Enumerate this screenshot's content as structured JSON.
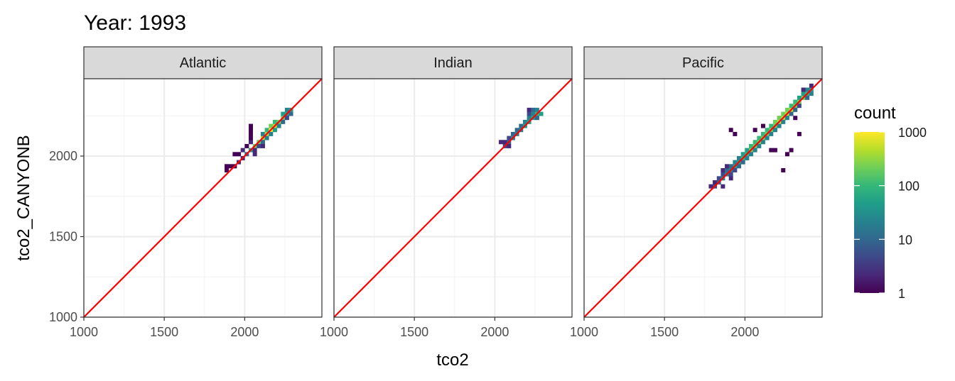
{
  "chart_data": {
    "type": "heatmap",
    "title": "Year: 1993",
    "xlabel": "tco2",
    "ylabel": "tco2_CANYONB",
    "xlim": [
      1000,
      2480
    ],
    "ylim": [
      1000,
      2480
    ],
    "x_ticks": [
      1000,
      1500,
      2000
    ],
    "x_tick_labels": [
      "1000",
      "1500",
      "2000"
    ],
    "y_ticks": [
      1000,
      1500,
      2000
    ],
    "y_tick_labels": [
      "1000",
      "1500",
      "2000"
    ],
    "grid": true,
    "bin_width": 25,
    "reference_line": {
      "slope": 1,
      "intercept": 0,
      "color": "#ff0000"
    },
    "legend": {
      "title": "count",
      "scale": "log10",
      "position": "right",
      "ticks": [
        1,
        10,
        100,
        1000
      ],
      "tick_labels": [
        "1",
        "10",
        "100",
        "1000"
      ],
      "colors": [
        "#440154",
        "#482878",
        "#3e4989",
        "#31688e",
        "#26828e",
        "#1f9e89",
        "#35b779",
        "#6ece58",
        "#b5de2b",
        "#fde725"
      ]
    },
    "panels": [
      {
        "label": "Atlantic",
        "cells": [
          [
            1875,
            1900,
            1
          ],
          [
            1900,
            1925,
            1
          ],
          [
            1925,
            1925,
            1
          ],
          [
            1925,
            2000,
            1
          ],
          [
            1950,
            1950,
            2
          ],
          [
            1950,
            2000,
            1
          ],
          [
            1975,
            1975,
            3
          ],
          [
            1975,
            2025,
            2
          ],
          [
            2000,
            2000,
            8
          ],
          [
            2000,
            2050,
            1
          ],
          [
            2025,
            2025,
            40
          ],
          [
            2025,
            2075,
            2
          ],
          [
            2025,
            2100,
            1
          ],
          [
            2025,
            2125,
            1
          ],
          [
            2025,
            2150,
            1
          ],
          [
            2025,
            2175,
            1
          ],
          [
            2050,
            2050,
            150
          ],
          [
            2050,
            2025,
            3
          ],
          [
            2050,
            2000,
            2
          ],
          [
            2075,
            2075,
            250
          ],
          [
            2075,
            2050,
            6
          ],
          [
            2100,
            2100,
            400
          ],
          [
            2100,
            2075,
            10
          ],
          [
            2100,
            2050,
            2
          ],
          [
            2100,
            2125,
            30
          ],
          [
            2125,
            2125,
            600
          ],
          [
            2125,
            2100,
            20
          ],
          [
            2125,
            2150,
            80
          ],
          [
            2150,
            2150,
            900
          ],
          [
            2150,
            2125,
            30
          ],
          [
            2150,
            2175,
            200
          ],
          [
            2175,
            2175,
            500
          ],
          [
            2175,
            2150,
            40
          ],
          [
            2175,
            2200,
            100
          ],
          [
            2200,
            2200,
            300
          ],
          [
            2200,
            2175,
            20
          ],
          [
            2225,
            2225,
            150
          ],
          [
            2225,
            2200,
            10
          ],
          [
            2225,
            2250,
            50
          ],
          [
            2250,
            2250,
            60
          ],
          [
            2250,
            2225,
            5
          ],
          [
            2250,
            2275,
            20
          ],
          [
            2275,
            2250,
            10
          ],
          [
            2275,
            2275,
            40
          ],
          [
            1875,
            1925,
            1
          ]
        ]
      },
      {
        "label": "Indian",
        "cells": [
          [
            2025,
            2075,
            2
          ],
          [
            2050,
            2050,
            4
          ],
          [
            2050,
            2075,
            3
          ],
          [
            2075,
            2075,
            8
          ],
          [
            2075,
            2100,
            5
          ],
          [
            2075,
            2050,
            2
          ],
          [
            2100,
            2100,
            15
          ],
          [
            2100,
            2125,
            8
          ],
          [
            2125,
            2125,
            20
          ],
          [
            2125,
            2150,
            10
          ],
          [
            2150,
            2150,
            30
          ],
          [
            2150,
            2175,
            12
          ],
          [
            2175,
            2175,
            40
          ],
          [
            2175,
            2200,
            15
          ],
          [
            2200,
            2200,
            50
          ],
          [
            2200,
            2225,
            20
          ],
          [
            2200,
            2250,
            5
          ],
          [
            2200,
            2275,
            3
          ],
          [
            2225,
            2225,
            60
          ],
          [
            2225,
            2250,
            30
          ],
          [
            2225,
            2275,
            8
          ],
          [
            2250,
            2250,
            80
          ],
          [
            2250,
            2225,
            10
          ],
          [
            2250,
            2275,
            30
          ],
          [
            2275,
            2250,
            40
          ]
        ]
      },
      {
        "label": "Pacific",
        "cells": [
          [
            1775,
            1800,
            2
          ],
          [
            1800,
            1800,
            5
          ],
          [
            1800,
            1825,
            3
          ],
          [
            1825,
            1825,
            8
          ],
          [
            1825,
            1850,
            4
          ],
          [
            1850,
            1850,
            15
          ],
          [
            1850,
            1875,
            6
          ],
          [
            1850,
            1900,
            2
          ],
          [
            1875,
            1875,
            20
          ],
          [
            1875,
            1900,
            10
          ],
          [
            1875,
            1925,
            3
          ],
          [
            1900,
            1900,
            25
          ],
          [
            1900,
            1925,
            12
          ],
          [
            1900,
            1875,
            4
          ],
          [
            1900,
            1850,
            2
          ],
          [
            1925,
            1925,
            40
          ],
          [
            1925,
            1950,
            20
          ],
          [
            1925,
            1900,
            5
          ],
          [
            1950,
            1950,
            60
          ],
          [
            1950,
            1975,
            30
          ],
          [
            1950,
            1925,
            8
          ],
          [
            1975,
            1975,
            80
          ],
          [
            1975,
            2000,
            40
          ],
          [
            1975,
            1950,
            10
          ],
          [
            2000,
            2000,
            120
          ],
          [
            2000,
            2025,
            60
          ],
          [
            2000,
            1975,
            15
          ],
          [
            2025,
            2025,
            150
          ],
          [
            2025,
            2050,
            80
          ],
          [
            2025,
            2000,
            20
          ],
          [
            2050,
            2050,
            180
          ],
          [
            2050,
            2075,
            100
          ],
          [
            2050,
            2025,
            25
          ],
          [
            2075,
            2075,
            200
          ],
          [
            2075,
            2100,
            100
          ],
          [
            2075,
            2050,
            30
          ],
          [
            2100,
            2100,
            220
          ],
          [
            2100,
            2125,
            120
          ],
          [
            2100,
            2075,
            30
          ],
          [
            2125,
            2125,
            250
          ],
          [
            2125,
            2150,
            120
          ],
          [
            2125,
            2100,
            25
          ],
          [
            2150,
            2150,
            280
          ],
          [
            2150,
            2175,
            140
          ],
          [
            2150,
            2125,
            20
          ],
          [
            2175,
            2175,
            300
          ],
          [
            2175,
            2200,
            150
          ],
          [
            2175,
            2150,
            20
          ],
          [
            2200,
            2200,
            320
          ],
          [
            2200,
            2225,
            160
          ],
          [
            2200,
            2175,
            20
          ],
          [
            2225,
            2225,
            350
          ],
          [
            2225,
            2250,
            170
          ],
          [
            2225,
            2200,
            15
          ],
          [
            2250,
            2250,
            380
          ],
          [
            2250,
            2275,
            150
          ],
          [
            2250,
            2225,
            15
          ],
          [
            2275,
            2275,
            350
          ],
          [
            2275,
            2300,
            120
          ],
          [
            2275,
            2250,
            10
          ],
          [
            2300,
            2300,
            250
          ],
          [
            2300,
            2325,
            80
          ],
          [
            2300,
            2275,
            8
          ],
          [
            2325,
            2325,
            200
          ],
          [
            2325,
            2350,
            60
          ],
          [
            2325,
            2300,
            5
          ],
          [
            2350,
            2350,
            150
          ],
          [
            2350,
            2375,
            40
          ],
          [
            2375,
            2375,
            100
          ],
          [
            2375,
            2400,
            20
          ],
          [
            2375,
            2350,
            10
          ],
          [
            2400,
            2400,
            60
          ],
          [
            2400,
            2375,
            15
          ],
          [
            2400,
            2425,
            3
          ],
          [
            2350,
            2400,
            3
          ],
          [
            1900,
            2150,
            1
          ],
          [
            1925,
            2125,
            1
          ],
          [
            2050,
            2150,
            1
          ],
          [
            2100,
            2175,
            1
          ],
          [
            2150,
            2025,
            1
          ],
          [
            2175,
            2025,
            1
          ],
          [
            2225,
            1900,
            1
          ],
          [
            2250,
            2000,
            1
          ],
          [
            2275,
            2025,
            1
          ],
          [
            2325,
            2125,
            1
          ],
          [
            2300,
            2225,
            1
          ],
          [
            1850,
            1800,
            2
          ]
        ]
      }
    ]
  }
}
